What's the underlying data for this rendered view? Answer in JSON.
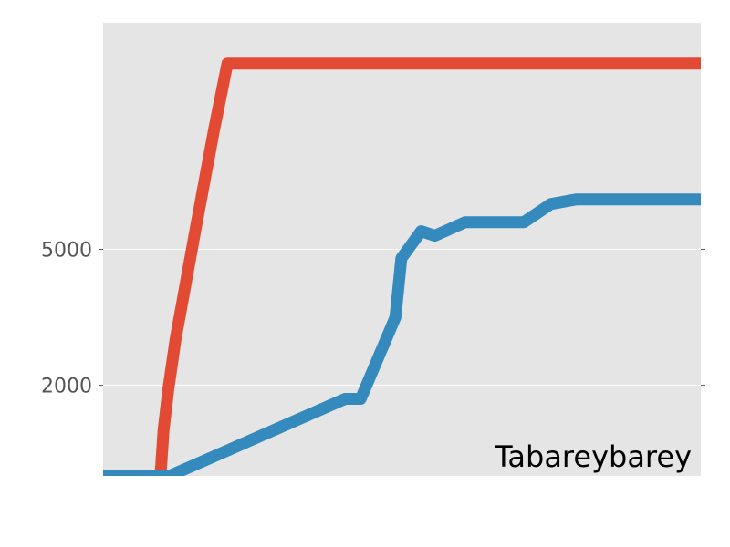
{
  "chart_data": {
    "type": "line",
    "title": "",
    "xlabel": "",
    "ylabel": "",
    "annotation": "Tabareybarey",
    "xlim": [
      0,
      100
    ],
    "ylim": [
      0,
      10000
    ],
    "yticks": [
      {
        "value": 2000,
        "label": "2000"
      },
      {
        "value": 5000,
        "label": "5000"
      }
    ],
    "grid": true,
    "series": [
      {
        "color": "#E24A33",
        "x": [
          0,
          9.6,
          10.1,
          10.9,
          12.1,
          15.4,
          18.5,
          20.8,
          100
        ],
        "y": [
          0,
          0,
          1000,
          1900,
          3000,
          5400,
          7600,
          9100,
          9100
        ]
      },
      {
        "color": "#348ABD",
        "x": [
          0,
          11.1,
          40.5,
          43.1,
          48.9,
          49.9,
          53.2,
          55.5,
          60.6,
          62.4,
          70.4,
          74.9,
          79.1,
          100
        ],
        "y": [
          0,
          0,
          1700,
          1700,
          3500,
          4800,
          5400,
          5300,
          5600,
          5600,
          5600,
          6000,
          6100,
          6100
        ]
      }
    ],
    "colors": {
      "plot_background": "#E5E5E5",
      "grid": "#FFFFFF",
      "tick_label": "#555555"
    }
  }
}
